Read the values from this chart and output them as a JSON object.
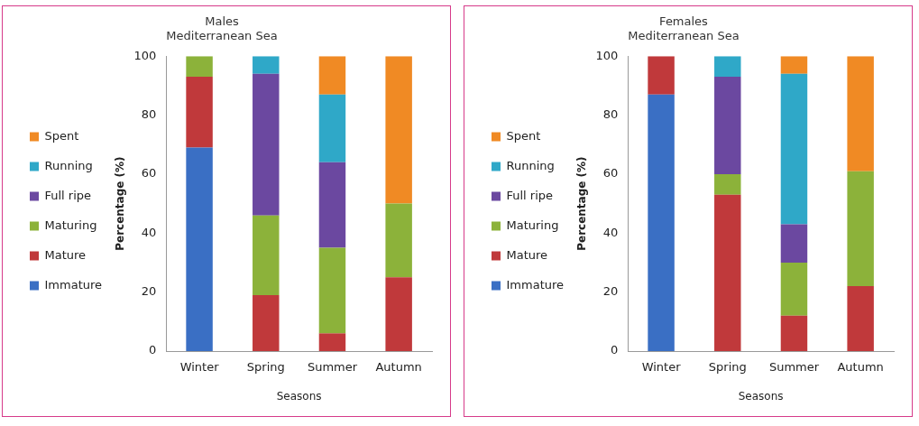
{
  "chart_data": [
    {
      "type": "bar",
      "title": "Males",
      "subtitle": "Mediterranean Sea",
      "xlabel": "Seasons",
      "ylabel": "Percentage (%)",
      "categories": [
        "Winter",
        "Spring",
        "Summer",
        "Autumn"
      ],
      "stacked": true,
      "ylim": [
        0,
        100
      ],
      "yticks": [
        0,
        20,
        40,
        60,
        80,
        100
      ],
      "grid": false,
      "legend": "left",
      "series": [
        {
          "name": "Immature",
          "color": "#3a6fc4",
          "values": [
            69,
            null,
            null,
            null
          ]
        },
        {
          "name": "Mature",
          "color": "#c0393b",
          "values": [
            24,
            19,
            6,
            25
          ]
        },
        {
          "name": "Maturing",
          "color": "#8cb23a",
          "values": [
            7,
            27,
            29,
            25
          ]
        },
        {
          "name": "Full ripe",
          "color": "#6b48a0",
          "values": [
            null,
            48,
            29,
            null
          ]
        },
        {
          "name": "Running",
          "color": "#2fa8c8",
          "values": [
            null,
            6,
            23,
            null
          ]
        },
        {
          "name": "Spent",
          "color": "#f08a24",
          "values": [
            null,
            null,
            13,
            50
          ]
        }
      ]
    },
    {
      "type": "bar",
      "title": "Females",
      "subtitle": "Mediterranean Sea",
      "xlabel": "Seasons",
      "ylabel": "Percentage (%)",
      "categories": [
        "Winter",
        "Spring",
        "Summer",
        "Autumn"
      ],
      "stacked": true,
      "ylim": [
        0,
        100
      ],
      "yticks": [
        0,
        20,
        40,
        60,
        80,
        100
      ],
      "grid": false,
      "legend": "left",
      "series": [
        {
          "name": "Immature",
          "color": "#3a6fc4",
          "values": [
            87,
            null,
            null,
            null
          ]
        },
        {
          "name": "Mature",
          "color": "#c0393b",
          "values": [
            13,
            53,
            12,
            22
          ]
        },
        {
          "name": "Maturing",
          "color": "#8cb23a",
          "values": [
            null,
            7,
            18,
            39
          ]
        },
        {
          "name": "Full ripe",
          "color": "#6b48a0",
          "values": [
            null,
            33,
            13,
            null
          ]
        },
        {
          "name": "Running",
          "color": "#2fa8c8",
          "values": [
            null,
            7,
            51,
            null
          ]
        },
        {
          "name": "Spent",
          "color": "#f08a24",
          "values": [
            null,
            null,
            6,
            39
          ]
        }
      ]
    }
  ]
}
